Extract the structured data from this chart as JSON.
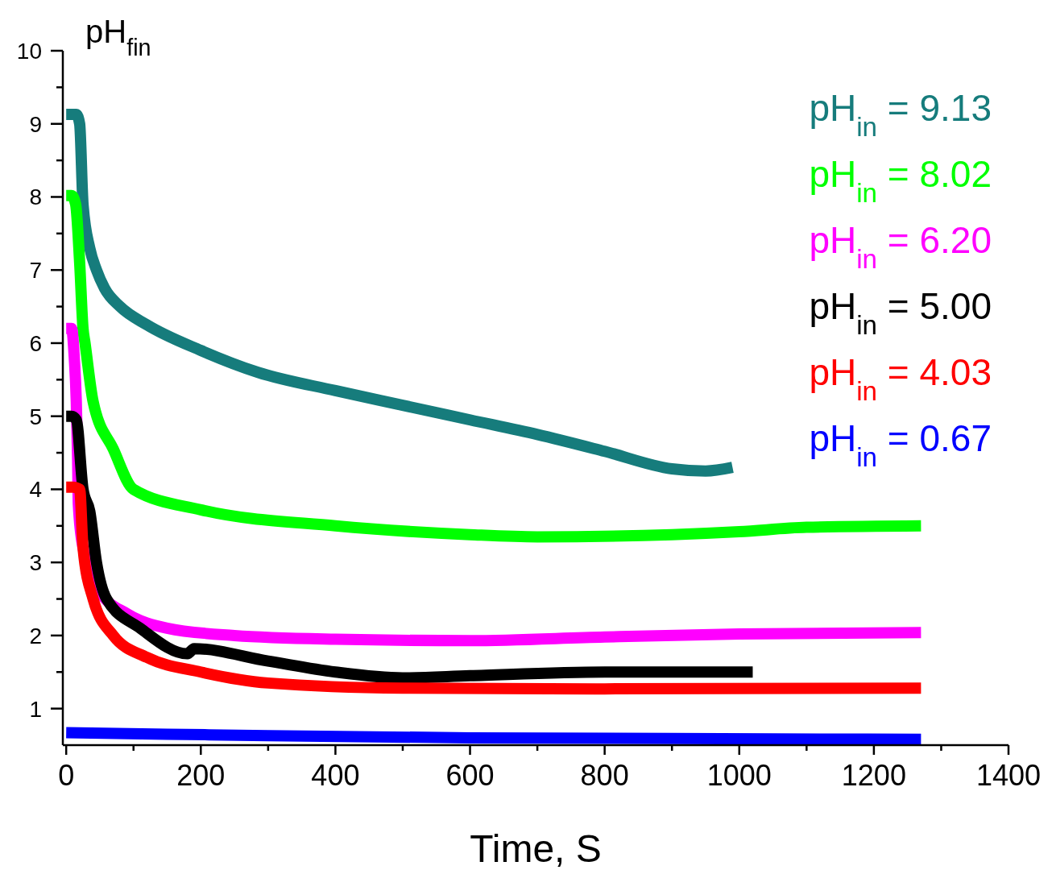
{
  "chart_data": {
    "type": "line",
    "ylabel": "pH$_{fin}$",
    "xlabel": "Time, S",
    "xlim": [
      -5,
      1400
    ],
    "xticks": [
      0,
      200,
      400,
      600,
      800,
      1000,
      1200,
      1400
    ],
    "ylim": [
      0.5,
      10
    ],
    "yticks": [
      1,
      2,
      3,
      4,
      5,
      6,
      7,
      8,
      9,
      10
    ],
    "legend": "top right",
    "line_style": "solid",
    "grid": false,
    "series": [
      {
        "name": "pH$_{in}$ = 9.13",
        "color": "#167c7c",
        "x": [
          0,
          8,
          15,
          20,
          25,
          35,
          45,
          57,
          80,
          120,
          200,
          285,
          400,
          500,
          600,
          700,
          800,
          900,
          950,
          990
        ],
        "values": [
          9.13,
          9.13,
          9.13,
          9.0,
          7.9,
          7.3,
          7.0,
          6.75,
          6.5,
          6.25,
          5.9,
          5.6,
          5.35,
          5.15,
          4.95,
          4.75,
          4.52,
          4.28,
          4.25,
          4.3
        ]
      },
      {
        "name": "pH$_{in}$ = 8.02",
        "color": "#00ff00",
        "x": [
          0,
          8,
          14,
          20,
          25,
          28,
          40,
          70,
          100,
          200,
          400,
          600,
          700,
          900,
          1000,
          1100,
          1270
        ],
        "values": [
          8.02,
          8.02,
          7.9,
          7.1,
          6.2,
          6.0,
          5.2,
          4.55,
          4.0,
          3.72,
          3.5,
          3.38,
          3.35,
          3.38,
          3.42,
          3.48,
          3.5
        ]
      },
      {
        "name": "pH$_{in}$ = 6.20",
        "color": "#ff00ff",
        "x": [
          0,
          8,
          12,
          15,
          17,
          18,
          25,
          50,
          90,
          150,
          250,
          400,
          600,
          800,
          1000,
          1270
        ],
        "values": [
          6.2,
          6.2,
          5.8,
          5.2,
          4.4,
          3.8,
          3.2,
          2.6,
          2.3,
          2.1,
          2.0,
          1.95,
          1.93,
          1.98,
          2.02,
          2.04
        ]
      },
      {
        "name": "pH$_{in}$ = 5.00",
        "color": "#000000",
        "x": [
          0,
          8,
          15,
          25,
          35,
          45,
          60,
          110,
          180,
          190,
          300,
          400,
          500,
          600,
          800,
          1020
        ],
        "values": [
          5.0,
          5.0,
          4.95,
          4.0,
          3.7,
          3.0,
          2.5,
          2.1,
          1.75,
          1.82,
          1.65,
          1.5,
          1.42,
          1.45,
          1.5,
          1.5
        ]
      },
      {
        "name": "pH$_{in}$ = 4.03",
        "color": "#ff0000",
        "x": [
          0,
          10,
          20,
          25,
          40,
          70,
          120,
          200,
          300,
          500,
          800,
          1270
        ],
        "values": [
          4.03,
          4.03,
          4.0,
          3.2,
          2.5,
          2.0,
          1.7,
          1.5,
          1.35,
          1.28,
          1.27,
          1.28
        ]
      },
      {
        "name": "pH$_{in}$ = 0.67",
        "color": "#0000ff",
        "x": [
          0,
          150,
          300,
          600,
          900,
          1270
        ],
        "values": [
          0.67,
          0.65,
          0.63,
          0.6,
          0.59,
          0.58
        ]
      }
    ]
  }
}
